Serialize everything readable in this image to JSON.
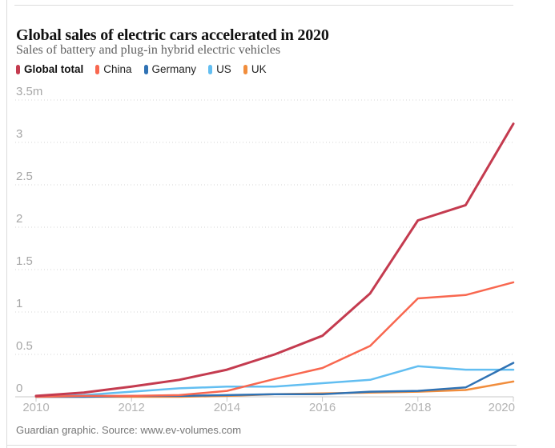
{
  "header": {
    "title": "Global sales of electric cars accelerated in 2020",
    "subtitle": "Sales of battery and plug-in hybrid electric vehicles"
  },
  "legend": {
    "items": [
      {
        "label": "Global total",
        "color": "#c43b4f",
        "bold": true
      },
      {
        "label": "China",
        "color": "#f8674f",
        "bold": false
      },
      {
        "label": "Germany",
        "color": "#2f72b4",
        "bold": false
      },
      {
        "label": "US",
        "color": "#62bef1",
        "bold": false
      },
      {
        "label": "UK",
        "color": "#f18d3c",
        "bold": false
      }
    ]
  },
  "chart_data": {
    "type": "line",
    "title": "Global sales of electric cars accelerated in 2020",
    "subtitle": "Sales of battery and plug-in hybrid electric vehicles",
    "unit": "million vehicles",
    "x": [
      2010,
      2011,
      2012,
      2013,
      2014,
      2015,
      2016,
      2017,
      2018,
      2019,
      2020
    ],
    "series": [
      {
        "name": "Global total",
        "color": "#c43b4f",
        "width": 3,
        "values": [
          0.01,
          0.05,
          0.12,
          0.2,
          0.32,
          0.5,
          0.72,
          1.22,
          2.08,
          2.26,
          3.22
        ]
      },
      {
        "name": "China",
        "color": "#f8674f",
        "width": 2.5,
        "values": [
          0.0,
          0.01,
          0.01,
          0.02,
          0.07,
          0.21,
          0.34,
          0.6,
          1.16,
          1.2,
          1.35
        ]
      },
      {
        "name": "Germany",
        "color": "#2f72b4",
        "width": 2.5,
        "values": [
          0.0,
          0.0,
          0.01,
          0.01,
          0.02,
          0.03,
          0.03,
          0.06,
          0.07,
          0.11,
          0.4
        ]
      },
      {
        "name": "US",
        "color": "#62bef1",
        "width": 2.5,
        "values": [
          0.0,
          0.02,
          0.06,
          0.1,
          0.12,
          0.12,
          0.16,
          0.2,
          0.36,
          0.32,
          0.32
        ]
      },
      {
        "name": "UK",
        "color": "#f18d3c",
        "width": 2.5,
        "values": [
          0.0,
          0.0,
          0.0,
          0.0,
          0.01,
          0.03,
          0.04,
          0.05,
          0.06,
          0.08,
          0.18
        ]
      }
    ],
    "draw_order": [
      "US",
      "UK",
      "Germany",
      "China",
      "Global total"
    ],
    "xlim": [
      2010,
      2020
    ],
    "ylim": [
      0,
      3.5
    ],
    "yticks": [
      {
        "value": 3.5,
        "label": "3.5m"
      },
      {
        "value": 3.0,
        "label": "3"
      },
      {
        "value": 2.5,
        "label": "2.5"
      },
      {
        "value": 2.0,
        "label": "2"
      },
      {
        "value": 1.5,
        "label": "1.5"
      },
      {
        "value": 1.0,
        "label": "1"
      },
      {
        "value": 0.5,
        "label": "0.5"
      },
      {
        "value": 0.0,
        "label": "0"
      }
    ],
    "xticks": [
      {
        "value": 2010,
        "label": "2010"
      },
      {
        "value": 2012,
        "label": "2012"
      },
      {
        "value": 2014,
        "label": "2014"
      },
      {
        "value": 2016,
        "label": "2016"
      },
      {
        "value": 2018,
        "label": "2018"
      },
      {
        "value": 2020,
        "label": "2020"
      }
    ],
    "grid": "horizontal-dotted",
    "legend_position": "top-left"
  },
  "footer": {
    "credit": "Guardian graphic. Source: www.ev-volumes.com"
  }
}
